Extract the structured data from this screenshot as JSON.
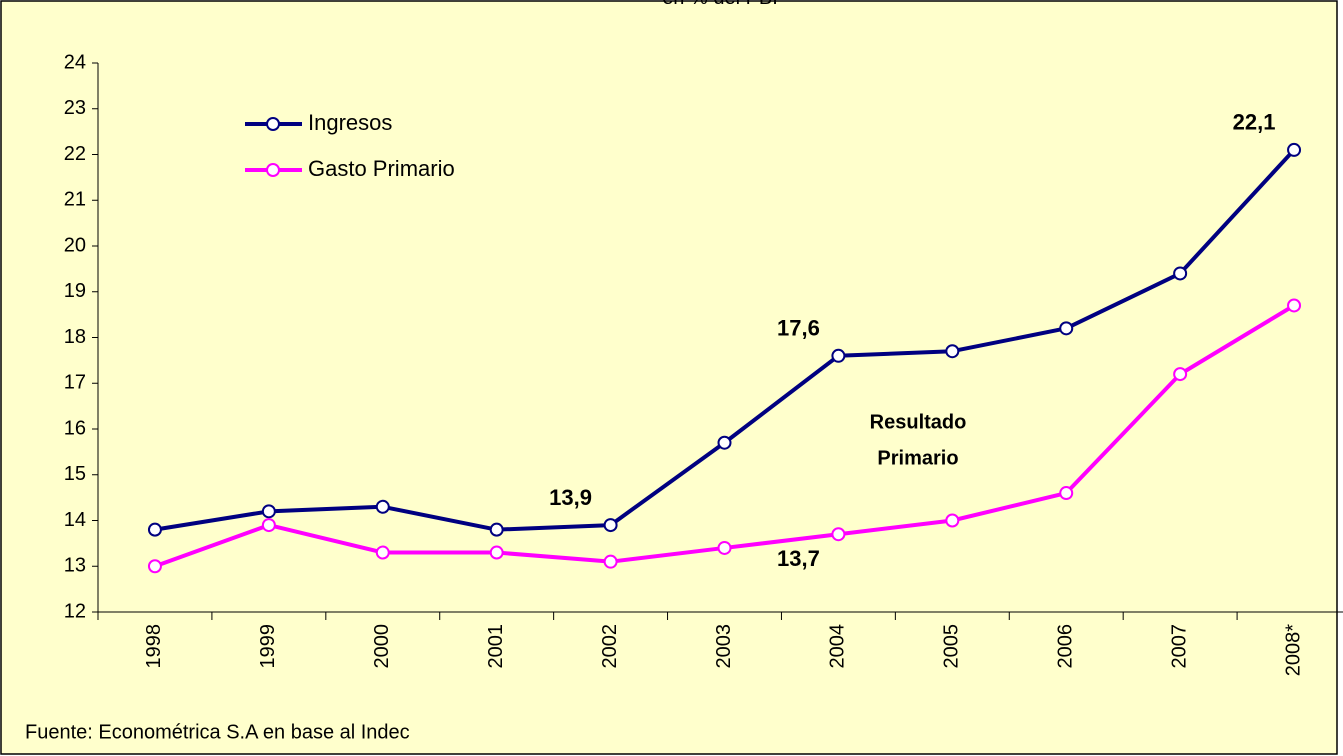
{
  "chart_data": {
    "type": "line",
    "subtitle": "en % del PBI",
    "categories": [
      "1998",
      "1999",
      "2000",
      "2001",
      "2002",
      "2003",
      "2004",
      "2005",
      "2006",
      "2007",
      "2008*"
    ],
    "series": [
      {
        "name": "Ingresos",
        "color": "#000080",
        "values": [
          13.8,
          14.2,
          14.3,
          13.8,
          13.9,
          15.7,
          17.6,
          17.7,
          18.2,
          19.4,
          22.1
        ],
        "value_labels": [
          null,
          null,
          null,
          null,
          "13,9",
          null,
          "17,6",
          null,
          null,
          null,
          "22,1"
        ]
      },
      {
        "name": "Gasto Primario",
        "color": "#ff00ff",
        "values": [
          13.0,
          13.9,
          13.3,
          13.3,
          13.1,
          13.4,
          13.7,
          14.0,
          14.6,
          17.2,
          18.7
        ],
        "value_labels": [
          null,
          null,
          null,
          null,
          null,
          null,
          "13,7",
          null,
          null,
          null,
          null
        ]
      }
    ],
    "annotations": [
      "Resultado",
      "Primario"
    ],
    "source": "Fuente: Econométrica S.A en base al Indec",
    "ylim": [
      12,
      24
    ],
    "yticks": [
      12,
      13,
      14,
      15,
      16,
      17,
      18,
      19,
      20,
      21,
      22,
      23,
      24
    ],
    "grid": false,
    "legend": "upper left",
    "background": "#ffffcc"
  }
}
